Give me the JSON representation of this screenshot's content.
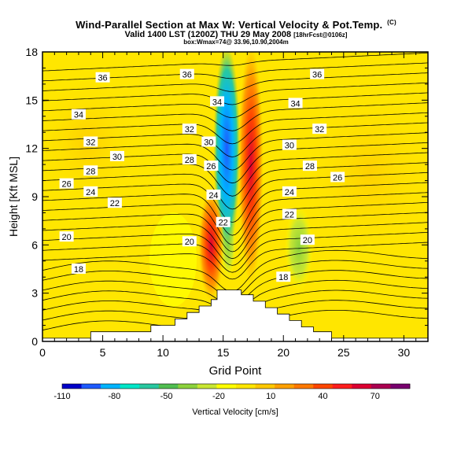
{
  "header": {
    "title": "Wind-Parallel Section at Max W: Vertical Velocity & Pot.Temp.",
    "title_mark": "(C)",
    "valid_line": "Valid 1400 LST (1200Z) THU 29 May 2008",
    "valid_tag": "[18hrFcst@0106z]",
    "box_line": "box:Wmax=74@ 33.96,10.90,2004m"
  },
  "chart_data": {
    "type": "heatmap",
    "xlabel": "Grid Point",
    "ylabel": "Height [Kft MSL]",
    "xlim": [
      0,
      32
    ],
    "ylim": [
      0,
      18
    ],
    "xticks": [
      0,
      5,
      10,
      15,
      20,
      25,
      30
    ],
    "yticks": [
      0,
      3,
      6,
      9,
      12,
      15,
      18
    ],
    "colorbar": {
      "label": "Vertical Velocity [cm/s]",
      "tick_labels": [
        "-110",
        "-80",
        "-50",
        "-20",
        "10",
        "40",
        "70"
      ],
      "tick_values": [
        -110,
        -80,
        -50,
        -20,
        10,
        40,
        70
      ],
      "range": [
        -110,
        90
      ],
      "colors": [
        "#0000c8",
        "#1e5aff",
        "#00b4ff",
        "#00e6c8",
        "#28c8a0",
        "#50be50",
        "#8cd23c",
        "#c8e632",
        "#ffff00",
        "#ffe600",
        "#ffc800",
        "#ffa000",
        "#ff7800",
        "#ff4600",
        "#ff1e1e",
        "#dc0032",
        "#aa0050",
        "#78006e"
      ]
    },
    "contour_field": "Potential temperature",
    "contour_labels": [
      {
        "text": "36",
        "x": 5.0,
        "y": 16.4
      },
      {
        "text": "36",
        "x": 12.0,
        "y": 16.6
      },
      {
        "text": "36",
        "x": 22.8,
        "y": 16.6
      },
      {
        "text": "34",
        "x": 3.0,
        "y": 14.1
      },
      {
        "text": "34",
        "x": 14.5,
        "y": 14.9
      },
      {
        "text": "34",
        "x": 21.0,
        "y": 14.8
      },
      {
        "text": "32",
        "x": 4.0,
        "y": 12.4
      },
      {
        "text": "32",
        "x": 12.2,
        "y": 13.2
      },
      {
        "text": "32",
        "x": 23.0,
        "y": 13.2
      },
      {
        "text": "30",
        "x": 6.2,
        "y": 11.5
      },
      {
        "text": "30",
        "x": 13.8,
        "y": 12.4
      },
      {
        "text": "30",
        "x": 20.5,
        "y": 12.2
      },
      {
        "text": "28",
        "x": 4.0,
        "y": 10.6
      },
      {
        "text": "28",
        "x": 12.2,
        "y": 11.3
      },
      {
        "text": "28",
        "x": 22.2,
        "y": 10.9
      },
      {
        "text": "26",
        "x": 2.0,
        "y": 9.8
      },
      {
        "text": "26",
        "x": 14.0,
        "y": 10.9
      },
      {
        "text": "26",
        "x": 24.5,
        "y": 10.2
      },
      {
        "text": "24",
        "x": 4.0,
        "y": 9.3
      },
      {
        "text": "24",
        "x": 14.2,
        "y": 9.1
      },
      {
        "text": "24",
        "x": 20.5,
        "y": 9.3
      },
      {
        "text": "22",
        "x": 6.0,
        "y": 8.6
      },
      {
        "text": "22",
        "x": 15.0,
        "y": 7.4
      },
      {
        "text": "22",
        "x": 20.5,
        "y": 7.9
      },
      {
        "text": "20",
        "x": 2.0,
        "y": 6.5
      },
      {
        "text": "20",
        "x": 12.2,
        "y": 6.2
      },
      {
        "text": "20",
        "x": 22.0,
        "y": 6.3
      },
      {
        "text": "18",
        "x": 3.0,
        "y": 4.5
      },
      {
        "text": "18",
        "x": 20.0,
        "y": 4.0
      }
    ],
    "terrain_kft": [
      [
        0,
        0.2
      ],
      [
        4,
        0.2
      ],
      [
        4,
        0.6
      ],
      [
        9,
        0.6
      ],
      [
        9,
        1.0
      ],
      [
        11,
        1.0
      ],
      [
        11,
        1.4
      ],
      [
        12,
        1.4
      ],
      [
        12,
        1.8
      ],
      [
        13,
        1.8
      ],
      [
        13,
        2.2
      ],
      [
        14,
        2.2
      ],
      [
        14,
        2.6
      ],
      [
        14.5,
        2.6
      ],
      [
        14.5,
        3.2
      ],
      [
        16.5,
        3.2
      ],
      [
        16.5,
        2.9
      ],
      [
        17.5,
        2.9
      ],
      [
        17.5,
        2.5
      ],
      [
        18.5,
        2.5
      ],
      [
        18.5,
        2.1
      ],
      [
        19.5,
        2.1
      ],
      [
        19.5,
        1.7
      ],
      [
        20.5,
        1.7
      ],
      [
        20.5,
        1.3
      ],
      [
        21.5,
        1.3
      ],
      [
        21.5,
        0.9
      ],
      [
        22.5,
        0.9
      ],
      [
        22.5,
        0.6
      ],
      [
        24,
        0.6
      ],
      [
        24,
        0.2
      ],
      [
        32,
        0.2
      ]
    ],
    "w_features": [
      {
        "kind": "downdraft",
        "x": 15.3,
        "y_from": 6,
        "y_to": 18,
        "w_min": -110
      },
      {
        "kind": "updraft",
        "x": 17.3,
        "y_from": 4,
        "y_to": 18,
        "w_max": 74
      },
      {
        "kind": "updraft",
        "x": 14.0,
        "y_from": 3,
        "y_to": 9,
        "w_max": 60
      }
    ]
  }
}
